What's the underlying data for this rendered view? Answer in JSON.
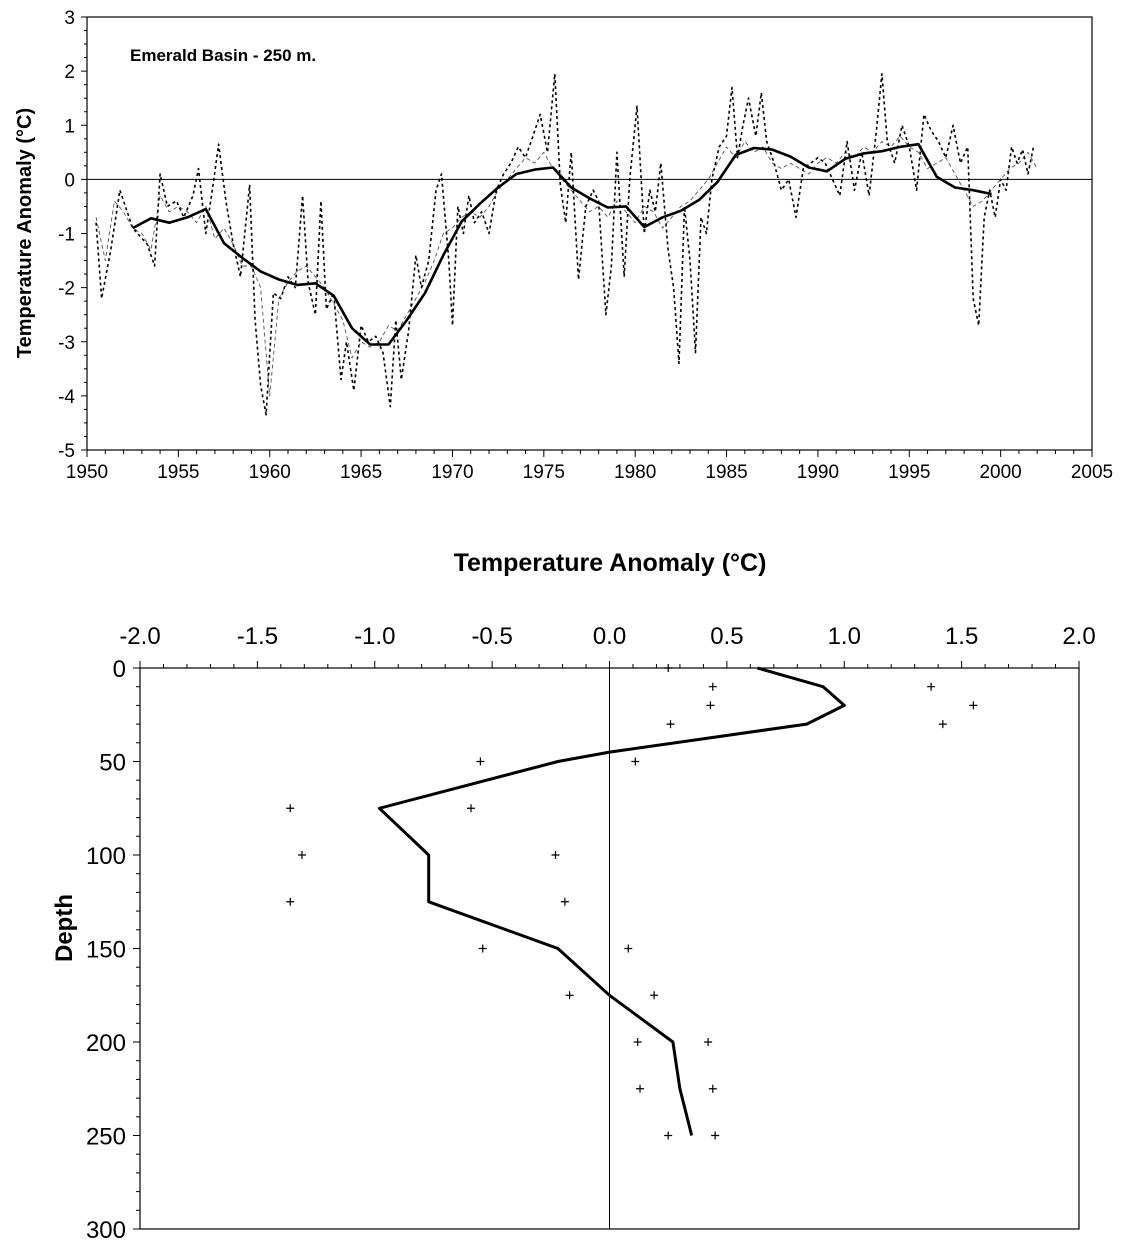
{
  "chart_data": [
    {
      "type": "line",
      "annotation": "Emerald Basin - 250 m.",
      "ylabel": "Temperature Anomaly (°C)",
      "xlabel": "",
      "xlim": [
        1950,
        2005
      ],
      "ylim": [
        -5,
        3
      ],
      "xticks": [
        "1950",
        "1955",
        "1960",
        "1965",
        "1970",
        "1975",
        "1980",
        "1985",
        "1990",
        "1995",
        "2000",
        "2005"
      ],
      "yticks": [
        "-5",
        "-4",
        "-3",
        "-2",
        "-1",
        "0",
        "1",
        "2",
        "3"
      ],
      "grid": false,
      "zero_line": true,
      "series": [
        {
          "style": "solid-thick",
          "x": [
            1952.5,
            1953.5,
            1954.5,
            1955.5,
            1956.5,
            1957.5,
            1958.5,
            1959.5,
            1960.5,
            1961.5,
            1962.5,
            1963.5,
            1964.5,
            1965.5,
            1966.5,
            1967.5,
            1968.5,
            1969.5,
            1970.5,
            1971.5,
            1972.5,
            1973.5,
            1974.5,
            1975.5,
            1976.5,
            1977.5,
            1978.5,
            1979.5,
            1980.5,
            1981.5,
            1982.5,
            1983.5,
            1984.5,
            1985.5,
            1986.5,
            1987.5,
            1988.5,
            1989.5,
            1990.5,
            1991.5,
            1992.5,
            1993.5,
            1994.5,
            1995.5,
            1996.5,
            1997.5,
            1998.5,
            1999.5
          ],
          "y": [
            -0.9,
            -0.72,
            -0.8,
            -0.7,
            -0.55,
            -1.18,
            -1.45,
            -1.7,
            -1.85,
            -1.95,
            -1.92,
            -2.15,
            -2.75,
            -3.05,
            -3.05,
            -2.6,
            -2.1,
            -1.4,
            -0.78,
            -0.45,
            -0.15,
            0.1,
            0.18,
            0.22,
            -0.15,
            -0.35,
            -0.52,
            -0.5,
            -0.88,
            -0.7,
            -0.58,
            -0.38,
            -0.05,
            0.45,
            0.58,
            0.55,
            0.42,
            0.22,
            0.15,
            0.38,
            0.48,
            0.52,
            0.6,
            0.65,
            0.05,
            -0.15,
            -0.2,
            -0.27
          ]
        },
        {
          "style": "dotted",
          "x": [
            1950.5,
            1950.8,
            1951.3,
            1951.8,
            1952.5,
            1953.3,
            1953.7,
            1954.0,
            1954.4,
            1954.9,
            1955.3,
            1955.8,
            1956.1,
            1956.5,
            1956.9,
            1957.2,
            1957.6,
            1958.0,
            1958.4,
            1958.9,
            1959.2,
            1959.5,
            1959.8,
            1960.2,
            1960.6,
            1961.0,
            1961.4,
            1961.8,
            1962.1,
            1962.5,
            1962.8,
            1963.1,
            1963.5,
            1963.9,
            1964.2,
            1964.6,
            1965.0,
            1965.4,
            1965.8,
            1966.2,
            1966.6,
            1966.9,
            1967.2,
            1967.6,
            1968.0,
            1968.3,
            1968.7,
            1969.1,
            1969.4,
            1969.8,
            1970.0,
            1970.3,
            1970.6,
            1970.9,
            1971.2,
            1971.6,
            1972.0,
            1972.4,
            1972.8,
            1973.2,
            1973.6,
            1974.0,
            1974.4,
            1974.8,
            1975.2,
            1975.6,
            1975.9,
            1976.2,
            1976.5,
            1976.9,
            1977.3,
            1977.7,
            1978.0,
            1978.4,
            1978.7,
            1979.0,
            1979.4,
            1979.7,
            1980.1,
            1980.5,
            1980.8,
            1981.1,
            1981.4,
            1981.8,
            1982.1,
            1982.4,
            1982.7,
            1983.0,
            1983.3,
            1983.6,
            1983.9,
            1984.2,
            1984.6,
            1985.0,
            1985.3,
            1985.6,
            1985.9,
            1986.2,
            1986.6,
            1986.9,
            1987.2,
            1987.6,
            1988.0,
            1988.4,
            1988.8,
            1989.2,
            1989.6,
            1990.0,
            1990.4,
            1990.8,
            1991.2,
            1991.6,
            1992.0,
            1992.4,
            1992.8,
            1993.2,
            1993.5,
            1993.8,
            1994.2,
            1994.6,
            1995.0,
            1995.4,
            1995.8,
            1996.2,
            1996.6,
            1997.0,
            1997.4,
            1997.8,
            1998.2,
            1998.5,
            1998.8,
            1999.1,
            1999.4,
            1999.7,
            2000.0,
            2000.3,
            2000.6,
            2000.9,
            2001.2,
            2001.5,
            2001.8
          ],
          "y": [
            -0.8,
            -2.2,
            -1.3,
            -0.2,
            -0.9,
            -1.2,
            -1.6,
            0.1,
            -0.5,
            -0.4,
            -0.7,
            -0.3,
            0.2,
            -1.0,
            -0.1,
            0.65,
            -0.4,
            -1.2,
            -1.8,
            -0.1,
            -2.6,
            -3.8,
            -4.35,
            -2.1,
            -2.2,
            -1.8,
            -2.0,
            -0.3,
            -1.9,
            -2.5,
            -0.4,
            -2.4,
            -2.1,
            -3.7,
            -3.0,
            -3.9,
            -2.7,
            -3.0,
            -2.9,
            -3.2,
            -4.2,
            -2.6,
            -3.7,
            -2.8,
            -1.4,
            -2.0,
            -1.5,
            -0.2,
            0.1,
            -1.5,
            -2.7,
            -0.5,
            -1.0,
            -0.3,
            -0.8,
            -0.6,
            -1.0,
            -0.2,
            0.1,
            0.3,
            0.6,
            0.4,
            0.8,
            1.2,
            0.5,
            1.95,
            -0.1,
            -0.8,
            0.5,
            -1.85,
            -0.5,
            -0.2,
            -0.4,
            -2.5,
            -1.6,
            0.5,
            -1.8,
            0.0,
            1.35,
            -1.0,
            -0.2,
            -0.6,
            0.3,
            -1.3,
            -2.0,
            -3.4,
            -0.5,
            -1.5,
            -3.2,
            -0.7,
            -1.0,
            0.0,
            0.6,
            0.8,
            1.7,
            0.4,
            1.0,
            1.5,
            0.8,
            1.6,
            0.7,
            0.3,
            -0.2,
            0.0,
            -0.7,
            0.2,
            0.3,
            0.4,
            0.3,
            0.0,
            -0.3,
            0.7,
            -0.2,
            0.5,
            -0.3,
            0.9,
            1.95,
            0.7,
            0.3,
            1.0,
            0.6,
            -0.2,
            1.2,
            0.9,
            0.7,
            0.4,
            1.0,
            0.3,
            0.6,
            -2.2,
            -2.7,
            -0.7,
            -0.2,
            -0.7,
            0.0,
            -0.2,
            0.6,
            0.3,
            0.55,
            0.1,
            0.6
          ]
        },
        {
          "style": "dashed-thin",
          "x": [
            1950.5,
            1951.0,
            1951.5,
            1952.0,
            1952.5,
            1953.0,
            1953.5,
            1954.0,
            1954.5,
            1955.0,
            1955.5,
            1956.0,
            1956.5,
            1957.0,
            1957.5,
            1958.0,
            1958.5,
            1959.0,
            1959.5,
            1960.0,
            1960.5,
            1961.0,
            1961.5,
            1962.0,
            1962.5,
            1963.0,
            1963.5,
            1964.0,
            1964.5,
            1965.0,
            1965.5,
            1966.0,
            1966.5,
            1967.0,
            1967.5,
            1968.0,
            1968.5,
            1969.0,
            1969.5,
            1970.0,
            1970.5,
            1971.0,
            1971.5,
            1972.0,
            1972.5,
            1973.0,
            1973.5,
            1974.0,
            1974.5,
            1975.0,
            1975.5,
            1976.0,
            1976.5,
            1977.0,
            1977.5,
            1978.0,
            1978.5,
            1979.0,
            1979.5,
            1980.0,
            1980.5,
            1981.0,
            1981.5,
            1982.0,
            1982.5,
            1983.0,
            1983.5,
            1984.0,
            1984.5,
            1985.0,
            1985.5,
            1986.0,
            1986.5,
            1987.0,
            1987.5,
            1988.0,
            1988.5,
            1989.0,
            1989.5,
            1990.0,
            1990.5,
            1991.0,
            1991.5,
            1992.0,
            1992.5,
            1993.0,
            1993.5,
            1994.0,
            1994.5,
            1995.0,
            1995.5,
            1996.0,
            1996.5,
            1997.0,
            1997.5,
            1998.0,
            1998.5,
            1999.0,
            1999.5,
            2000.0,
            2000.5,
            2001.0,
            2001.5,
            2002.0
          ],
          "y": [
            -0.7,
            -1.5,
            -0.4,
            -0.6,
            -0.9,
            -1.0,
            -1.3,
            -0.3,
            -0.6,
            -0.5,
            -0.6,
            -0.8,
            -0.5,
            -1.1,
            -0.9,
            -1.2,
            -1.6,
            -1.6,
            -2.0,
            -4.0,
            -2.2,
            -1.9,
            -1.7,
            -1.6,
            -1.8,
            -2.0,
            -2.3,
            -2.6,
            -3.3,
            -3.0,
            -3.1,
            -3.0,
            -2.7,
            -2.8,
            -2.5,
            -2.2,
            -1.9,
            -1.5,
            -1.0,
            -0.9,
            -0.7,
            -0.6,
            -0.7,
            -0.5,
            -0.2,
            0.0,
            0.2,
            0.4,
            0.3,
            0.5,
            0.2,
            0.0,
            -0.2,
            -0.4,
            -0.6,
            -0.5,
            -0.7,
            -0.4,
            -0.6,
            -0.8,
            -0.5,
            -0.6,
            -0.9,
            -0.7,
            -0.5,
            -0.4,
            -0.2,
            0.0,
            0.3,
            0.6,
            0.4,
            0.7,
            0.5,
            0.6,
            0.3,
            0.2,
            0.3,
            0.2,
            0.1,
            0.3,
            0.4,
            0.3,
            0.5,
            0.4,
            0.6,
            0.5,
            0.7,
            0.6,
            0.8,
            0.6,
            0.5,
            0.2,
            0.3,
            0.4,
            0.1,
            -0.2,
            -0.5,
            -0.4,
            -0.2,
            0.0,
            0.2,
            0.3,
            0.5,
            0.2
          ]
        }
      ]
    },
    {
      "type": "line",
      "title": "Temperature Anomaly (°C)",
      "ylabel": "Depth",
      "xlim": [
        -2.0,
        2.0
      ],
      "ylim": [
        0,
        300
      ],
      "y_inverted": true,
      "x_axis_position": "top",
      "xticks": [
        "-2.0",
        "-1.5",
        "-1.0",
        "-0.5",
        "0.0",
        "0.5",
        "1.0",
        "1.5",
        "2.0"
      ],
      "yticks": [
        "0",
        "50",
        "100",
        "150",
        "200",
        "250",
        "300"
      ],
      "grid": false,
      "zero_line": true,
      "series": [
        {
          "style": "solid-thick",
          "x": [
            0.63,
            0.91,
            1.0,
            0.84,
            0.0,
            -0.22,
            -0.98,
            -0.77,
            -0.77,
            -0.22,
            0.0,
            0.27,
            0.3,
            0.35
          ],
          "y": [
            0,
            10,
            20,
            30,
            45,
            50,
            75,
            100,
            125,
            150,
            175,
            200,
            225,
            250
          ]
        },
        {
          "style": "plus-markers",
          "x": [
            0.25,
            0.44,
            0.43,
            0.26,
            -0.55,
            0.11,
            -1.36,
            -0.59,
            -1.31,
            -0.23,
            -1.36,
            -0.19,
            -0.54,
            0.08,
            -0.17,
            0.19,
            0.12,
            0.42,
            0.13,
            0.44,
            0.25,
            0.45,
            1.37,
            1.55,
            1.42
          ],
          "y": [
            0,
            10,
            20,
            30,
            50,
            50,
            75,
            75,
            100,
            100,
            125,
            125,
            150,
            150,
            175,
            175,
            200,
            200,
            225,
            225,
            250,
            250,
            10,
            20,
            30
          ]
        }
      ]
    }
  ]
}
